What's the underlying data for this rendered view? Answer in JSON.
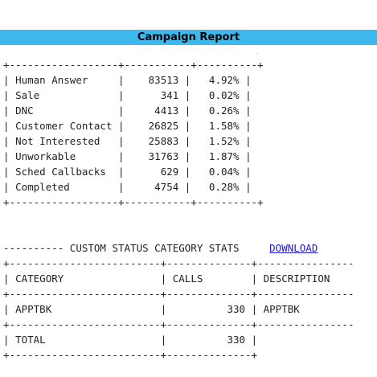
{
  "header": {
    "title": "Campaign Report",
    "mark": "`"
  },
  "status_table": {
    "rows": [
      {
        "status": "Human Answer",
        "count": "83513",
        "percent": "4.92%"
      },
      {
        "status": "Sale",
        "count": "341",
        "percent": "0.02%"
      },
      {
        "status": "DNC",
        "count": "4413",
        "percent": "0.26%"
      },
      {
        "status": "Customer Contact",
        "count": "26825",
        "percent": "1.58%"
      },
      {
        "status": "Not Interested",
        "count": "25883",
        "percent": "1.52%"
      },
      {
        "status": "Unworkable",
        "count": "31763",
        "percent": "1.87%"
      },
      {
        "status": "Sched Callbacks",
        "count": "629",
        "percent": "0.04%"
      },
      {
        "status": "Completed",
        "count": "4754",
        "percent": "0.28%"
      }
    ]
  },
  "custom_stats": {
    "heading": "CUSTOM STATUS CATEGORY STATS",
    "download_label": "DOWNLOAD",
    "headers": {
      "category": "CATEGORY",
      "calls": "CALLS",
      "description": "DESCRIPTION"
    },
    "rows": [
      {
        "category": "APPTBK",
        "calls": "330",
        "description": "APPTBK"
      }
    ],
    "total": {
      "label": "TOTAL",
      "calls": "330"
    }
  }
}
